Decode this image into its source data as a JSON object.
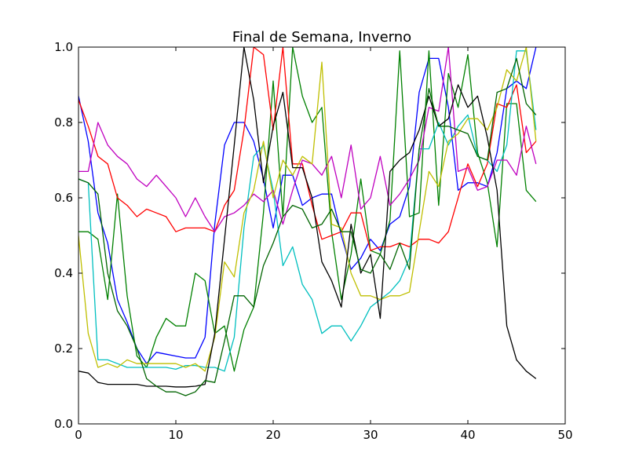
{
  "chart_data": {
    "type": "line",
    "title": "Final de Semana, Inverno",
    "xlabel": "",
    "ylabel": "",
    "xlim": [
      0,
      50
    ],
    "ylim": [
      0.0,
      1.0
    ],
    "xticks": [
      "0",
      "10",
      "20",
      "30",
      "40",
      "50"
    ],
    "yticks": [
      "0.0",
      "0.2",
      "0.4",
      "0.6",
      "0.8",
      "1.0"
    ],
    "grid": false,
    "legend": "none",
    "x": [
      0,
      1,
      2,
      3,
      4,
      5,
      6,
      7,
      8,
      9,
      10,
      11,
      12,
      13,
      14,
      15,
      16,
      17,
      18,
      19,
      20,
      21,
      22,
      23,
      24,
      25,
      26,
      27,
      28,
      29,
      30,
      31,
      32,
      33,
      34,
      35,
      36,
      37,
      38,
      39,
      40,
      41,
      42,
      43,
      44,
      45,
      46,
      47
    ],
    "series": [
      {
        "color": "#0000ff",
        "values": [
          0.87,
          0.75,
          0.56,
          0.48,
          0.33,
          0.27,
          0.2,
          0.16,
          0.19,
          0.185,
          0.18,
          0.175,
          0.175,
          0.23,
          0.53,
          0.74,
          0.8,
          0.8,
          0.75,
          0.65,
          0.52,
          0.66,
          0.66,
          0.58,
          0.6,
          0.61,
          0.61,
          0.5,
          0.41,
          0.44,
          0.49,
          0.46,
          0.53,
          0.55,
          0.63,
          0.88,
          0.97,
          0.97,
          0.84,
          0.62,
          0.64,
          0.64,
          0.63,
          0.72,
          0.89,
          0.91,
          0.89,
          1.0
        ]
      },
      {
        "color": "#008000",
        "values": [
          0.51,
          0.51,
          0.49,
          0.33,
          0.61,
          0.34,
          0.18,
          0.15,
          0.23,
          0.28,
          0.26,
          0.26,
          0.4,
          0.38,
          0.24,
          0.26,
          0.14,
          0.25,
          0.31,
          0.56,
          0.91,
          0.55,
          1.0,
          0.87,
          0.8,
          0.84,
          0.51,
          0.33,
          0.45,
          0.65,
          0.46,
          0.45,
          0.54,
          0.99,
          0.55,
          0.56,
          0.99,
          0.58,
          0.93,
          0.84,
          0.98,
          0.72,
          0.64,
          0.47,
          0.85,
          0.85,
          0.62,
          0.59
        ]
      },
      {
        "color": "#ff0000",
        "values": [
          0.86,
          0.79,
          0.71,
          0.69,
          0.6,
          0.58,
          0.55,
          0.57,
          0.56,
          0.55,
          0.51,
          0.52,
          0.52,
          0.52,
          0.51,
          0.58,
          0.62,
          0.78,
          1.0,
          0.98,
          0.78,
          1.0,
          0.69,
          0.69,
          0.58,
          0.49,
          0.5,
          0.51,
          0.56,
          0.56,
          0.46,
          0.47,
          0.47,
          0.48,
          0.47,
          0.49,
          0.49,
          0.48,
          0.51,
          0.6,
          0.69,
          0.63,
          0.69,
          0.85,
          0.84,
          0.9,
          0.72,
          0.75
        ]
      },
      {
        "color": "#00bfbf",
        "values": [
          0.65,
          0.64,
          0.17,
          0.17,
          0.16,
          0.15,
          0.15,
          0.15,
          0.15,
          0.15,
          0.145,
          0.155,
          0.155,
          0.15,
          0.15,
          0.14,
          0.23,
          0.52,
          0.71,
          0.74,
          0.62,
          0.42,
          0.47,
          0.37,
          0.33,
          0.24,
          0.26,
          0.26,
          0.22,
          0.26,
          0.31,
          0.33,
          0.35,
          0.38,
          0.44,
          0.73,
          0.73,
          0.8,
          0.74,
          0.79,
          0.82,
          0.71,
          0.7,
          0.67,
          0.74,
          0.99,
          0.99,
          0.78
        ]
      },
      {
        "color": "#bf00bf",
        "values": [
          0.67,
          0.67,
          0.8,
          0.74,
          0.71,
          0.69,
          0.65,
          0.63,
          0.66,
          0.63,
          0.6,
          0.55,
          0.6,
          0.55,
          0.51,
          0.55,
          0.56,
          0.58,
          0.61,
          0.59,
          0.62,
          0.53,
          0.62,
          0.7,
          0.69,
          0.66,
          0.71,
          0.6,
          0.74,
          0.57,
          0.6,
          0.71,
          0.58,
          0.61,
          0.65,
          0.7,
          0.84,
          0.83,
          1.0,
          0.67,
          0.68,
          0.62,
          0.63,
          0.7,
          0.7,
          0.66,
          0.79,
          0.69
        ]
      },
      {
        "color": "#bfbf00",
        "values": [
          0.5,
          0.24,
          0.15,
          0.16,
          0.15,
          0.17,
          0.16,
          0.16,
          0.16,
          0.16,
          0.16,
          0.15,
          0.16,
          0.14,
          0.23,
          0.43,
          0.39,
          0.56,
          0.62,
          0.75,
          0.6,
          0.7,
          0.66,
          0.71,
          0.69,
          0.96,
          0.53,
          0.52,
          0.4,
          0.34,
          0.34,
          0.33,
          0.34,
          0.34,
          0.35,
          0.51,
          0.67,
          0.63,
          0.75,
          0.77,
          0.81,
          0.81,
          0.78,
          0.84,
          0.94,
          0.91,
          1.0,
          0.75
        ]
      },
      {
        "color": "#000000",
        "values": [
          0.14,
          0.135,
          0.11,
          0.105,
          0.105,
          0.105,
          0.105,
          0.1,
          0.1,
          0.1,
          0.098,
          0.098,
          0.1,
          0.105,
          0.24,
          0.49,
          0.74,
          1.0,
          0.86,
          0.64,
          0.79,
          0.88,
          0.68,
          0.68,
          0.6,
          0.43,
          0.38,
          0.31,
          0.53,
          0.4,
          0.45,
          0.28,
          0.67,
          0.7,
          0.72,
          0.78,
          0.87,
          0.79,
          0.81,
          0.9,
          0.84,
          0.87,
          0.76,
          0.62,
          0.26,
          0.17,
          0.14,
          0.12
        ]
      },
      {
        "color": "#006400",
        "values": [
          0.65,
          0.64,
          0.61,
          0.4,
          0.3,
          0.26,
          0.2,
          0.12,
          0.1,
          0.085,
          0.085,
          0.075,
          0.085,
          0.115,
          0.11,
          0.22,
          0.34,
          0.34,
          0.31,
          0.42,
          0.48,
          0.55,
          0.58,
          0.57,
          0.52,
          0.53,
          0.57,
          0.51,
          0.51,
          0.41,
          0.4,
          0.45,
          0.41,
          0.48,
          0.41,
          0.73,
          0.89,
          0.79,
          0.79,
          0.78,
          0.77,
          0.71,
          0.7,
          0.88,
          0.89,
          0.97,
          0.85,
          0.82
        ]
      }
    ]
  }
}
